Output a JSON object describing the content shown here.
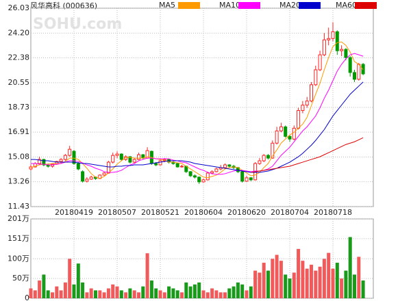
{
  "chart_data": {
    "type": "candlestick",
    "title": "风华高科 (000636)",
    "watermark": "SOHU.com",
    "up_color": "#ff2020",
    "down_color": "#009900",
    "categories": [
      null,
      null,
      null,
      null,
      null,
      null,
      null,
      null,
      null,
      null,
      "20180419",
      null,
      null,
      null,
      null,
      null,
      null,
      null,
      null,
      null,
      "20180507",
      null,
      null,
      null,
      null,
      null,
      null,
      null,
      null,
      null,
      "20180521",
      null,
      null,
      null,
      null,
      null,
      null,
      null,
      null,
      null,
      "20180604",
      null,
      null,
      null,
      null,
      null,
      null,
      null,
      null,
      null,
      "20180620",
      null,
      null,
      null,
      null,
      null,
      null,
      null,
      null,
      null,
      "20180704",
      null,
      null,
      null,
      null,
      null,
      null,
      null,
      null,
      null,
      "20180718",
      null,
      null,
      null,
      null,
      null,
      null,
      null
    ],
    "open": [
      14.2,
      14.35,
      14.6,
      14.9,
      14.5,
      14.4,
      14.55,
      14.75,
      14.9,
      15.2,
      15.5,
      14.6,
      14.0,
      13.3,
      13.45,
      13.6,
      13.5,
      13.75,
      13.9,
      14.7,
      15.2,
      15.3,
      14.9,
      15.1,
      14.7,
      14.9,
      15.25,
      15.0,
      15.5,
      14.6,
      14.5,
      14.8,
      14.9,
      14.7,
      14.6,
      14.35,
      14.4,
      14.0,
      13.7,
      13.6,
      13.25,
      13.4,
      13.9,
      14.0,
      14.2,
      14.3,
      14.5,
      14.4,
      14.3,
      14.0,
      13.3,
      13.55,
      13.4,
      14.6,
      14.8,
      15.2,
      15.0,
      16.1,
      17.0,
      17.3,
      16.6,
      16.4,
      17.2,
      18.5,
      18.9,
      19.2,
      20.4,
      21.5,
      22.6,
      23.7,
      23.8,
      24.3,
      22.9,
      23.0,
      22.4,
      21.3,
      20.8,
      21.9
    ],
    "high": [
      14.5,
      14.7,
      15.1,
      14.95,
      14.6,
      14.6,
      14.8,
      15.0,
      15.3,
      15.9,
      15.6,
      14.7,
      14.1,
      13.6,
      13.7,
      13.65,
      13.8,
      14.0,
      14.8,
      15.4,
      15.5,
      15.35,
      15.2,
      15.15,
      15.0,
      15.4,
      15.3,
      15.8,
      15.55,
      14.7,
      14.9,
      15.0,
      14.95,
      14.8,
      14.65,
      14.5,
      14.45,
      14.05,
      13.8,
      13.65,
      13.5,
      14.0,
      14.1,
      14.3,
      14.5,
      14.6,
      14.55,
      14.5,
      14.35,
      14.05,
      13.7,
      13.6,
      14.7,
      15.0,
      15.3,
      15.3,
      16.3,
      17.3,
      17.6,
      17.4,
      16.7,
      17.4,
      18.7,
      19.2,
      19.5,
      20.6,
      21.8,
      22.9,
      24.2,
      24.6,
      25.0,
      24.4,
      23.3,
      23.1,
      22.5,
      21.5,
      22.0,
      22.0
    ],
    "low": [
      14.1,
      14.3,
      14.5,
      14.4,
      14.3,
      14.3,
      14.5,
      14.6,
      14.8,
      15.1,
      14.5,
      14.1,
      13.2,
      13.2,
      13.4,
      13.4,
      13.45,
      13.7,
      13.85,
      14.6,
      15.0,
      14.8,
      14.8,
      14.6,
      14.6,
      14.85,
      14.9,
      14.95,
      14.5,
      14.4,
      14.45,
      14.7,
      14.6,
      14.5,
      14.3,
      14.3,
      13.9,
      13.6,
      13.5,
      13.1,
      13.2,
      13.35,
      13.8,
      13.95,
      14.1,
      14.2,
      14.3,
      14.2,
      13.9,
      13.2,
      13.25,
      13.3,
      13.35,
      14.5,
      14.7,
      14.9,
      14.95,
      16.0,
      16.9,
      16.5,
      16.2,
      16.3,
      17.1,
      18.3,
      18.7,
      19.1,
      20.3,
      21.4,
      22.5,
      23.3,
      23.6,
      22.6,
      22.5,
      22.2,
      21.0,
      20.6,
      20.7,
      21.1
    ],
    "close": [
      14.35,
      14.6,
      14.9,
      14.5,
      14.4,
      14.55,
      14.75,
      14.9,
      15.2,
      15.65,
      14.6,
      14.2,
      13.3,
      13.45,
      13.6,
      13.5,
      13.75,
      13.9,
      14.7,
      15.2,
      15.3,
      14.9,
      15.1,
      14.7,
      14.9,
      15.25,
      15.0,
      15.55,
      14.6,
      14.5,
      14.8,
      14.9,
      14.7,
      14.6,
      14.35,
      14.4,
      14.0,
      13.7,
      13.6,
      13.25,
      13.4,
      13.9,
      14.0,
      14.2,
      14.3,
      14.5,
      14.4,
      14.3,
      14.0,
      13.3,
      13.55,
      13.4,
      14.6,
      14.8,
      15.2,
      15.0,
      16.1,
      17.0,
      17.3,
      16.6,
      16.4,
      17.2,
      18.5,
      18.9,
      19.2,
      20.4,
      21.5,
      22.6,
      23.7,
      23.8,
      24.3,
      22.9,
      23.0,
      22.4,
      21.3,
      20.8,
      21.9,
      21.2
    ],
    "ylim": [
      11.43,
      26.03
    ],
    "yticks": [
      26.03,
      {
        "value": 24.2,
        "label": "24.20"
      },
      22.38,
      20.55,
      18.73,
      16.91,
      15.08,
      13.26,
      11.43
    ],
    "grid": true,
    "series": [
      {
        "name": "MA5",
        "color": "#ff9900",
        "values": [
          14.3,
          14.4,
          14.5,
          14.55,
          14.55,
          14.6,
          14.6,
          14.6,
          14.75,
          15.0,
          15.0,
          14.9,
          14.6,
          14.25,
          13.85,
          13.6,
          13.5,
          13.65,
          13.9,
          14.2,
          14.55,
          14.8,
          15.05,
          15.05,
          15.0,
          15.0,
          15.0,
          15.1,
          15.05,
          14.95,
          14.9,
          14.85,
          14.7,
          14.7,
          14.65,
          14.6,
          14.4,
          14.2,
          14.0,
          13.8,
          13.6,
          13.55,
          13.65,
          13.75,
          13.95,
          14.2,
          14.3,
          14.35,
          14.3,
          14.1,
          13.9,
          13.7,
          13.75,
          13.95,
          14.3,
          14.6,
          15.15,
          15.6,
          16.1,
          16.4,
          16.7,
          16.9,
          17.2,
          17.5,
          18.0,
          18.85,
          19.7,
          20.5,
          21.5,
          22.4,
          23.2,
          23.5,
          23.55,
          23.3,
          22.8,
          22.1,
          21.9,
          21.5
        ]
      },
      {
        "name": "MA10",
        "color": "#ff00ff",
        "values": [
          14.6,
          14.6,
          14.55,
          14.55,
          14.5,
          14.5,
          14.55,
          14.6,
          14.7,
          14.8,
          14.8,
          14.75,
          14.65,
          14.5,
          14.4,
          14.25,
          14.15,
          14.0,
          13.95,
          13.95,
          14.0,
          14.1,
          14.3,
          14.5,
          14.6,
          14.8,
          14.9,
          15.0,
          15.0,
          14.95,
          14.95,
          14.95,
          14.95,
          14.85,
          14.8,
          14.7,
          14.65,
          14.5,
          14.35,
          14.2,
          14.1,
          13.95,
          13.85,
          13.8,
          13.8,
          13.85,
          13.95,
          14.05,
          14.1,
          14.1,
          14.05,
          14.0,
          14.05,
          14.05,
          14.1,
          14.2,
          14.4,
          14.8,
          15.2,
          15.5,
          15.8,
          16.2,
          16.6,
          17.0,
          17.3,
          17.7,
          18.1,
          18.7,
          19.4,
          20.0,
          20.7,
          21.4,
          21.9,
          22.3,
          22.6,
          22.7,
          22.6,
          22.5
        ]
      },
      {
        "name": "MA20",
        "color": "#0000cc",
        "values": [
          14.9,
          14.9,
          14.85,
          14.8,
          14.8,
          14.75,
          14.7,
          14.7,
          14.7,
          14.7,
          14.7,
          14.65,
          14.6,
          14.6,
          14.55,
          14.5,
          14.45,
          14.4,
          14.35,
          14.35,
          14.4,
          14.4,
          14.45,
          14.45,
          14.5,
          14.5,
          14.5,
          14.55,
          14.6,
          14.65,
          14.7,
          14.75,
          14.8,
          14.8,
          14.8,
          14.8,
          14.75,
          14.7,
          14.6,
          14.55,
          14.5,
          14.45,
          14.4,
          14.35,
          14.3,
          14.25,
          14.2,
          14.15,
          14.1,
          14.05,
          14.0,
          13.95,
          13.95,
          13.95,
          14.0,
          14.05,
          14.15,
          14.25,
          14.4,
          14.55,
          14.7,
          14.9,
          15.1,
          15.35,
          15.65,
          15.95,
          16.3,
          16.7,
          17.1,
          17.6,
          18.1,
          18.5,
          18.9,
          19.3,
          19.7,
          20.0,
          20.3,
          20.6
        ]
      },
      {
        "name": "MA60",
        "color": "#dd0000",
        "values": [
          null,
          null,
          null,
          null,
          null,
          null,
          null,
          null,
          null,
          null,
          null,
          null,
          null,
          null,
          null,
          null,
          null,
          null,
          null,
          null,
          null,
          null,
          null,
          null,
          null,
          null,
          null,
          null,
          null,
          null,
          null,
          null,
          null,
          null,
          null,
          null,
          null,
          null,
          null,
          null,
          null,
          null,
          null,
          null,
          null,
          null,
          null,
          null,
          null,
          null,
          null,
          13.95,
          14.0,
          14.05,
          14.1,
          14.15,
          14.2,
          14.25,
          14.3,
          14.35,
          14.4,
          14.5,
          14.6,
          14.7,
          14.8,
          14.9,
          15.0,
          15.1,
          15.25,
          15.4,
          15.55,
          15.7,
          15.85,
          16.0,
          16.1,
          16.2,
          16.35,
          16.5
        ]
      }
    ],
    "volume": {
      "values": [
        25,
        20,
        45,
        60,
        20,
        15,
        30,
        20,
        40,
        100,
        35,
        88,
        40,
        15,
        25,
        20,
        20,
        15,
        25,
        35,
        30,
        20,
        15,
        25,
        20,
        15,
        30,
        114,
        45,
        25,
        20,
        15,
        30,
        25,
        20,
        15,
        40,
        30,
        35,
        40,
        20,
        15,
        25,
        20,
        15,
        15,
        25,
        30,
        40,
        35,
        20,
        30,
        70,
        65,
        90,
        70,
        100,
        110,
        95,
        60,
        50,
        65,
        125,
        95,
        75,
        85,
        70,
        80,
        100,
        115,
        75,
        90,
        50,
        70,
        155,
        60,
        105,
        45
      ],
      "ylim": [
        0,
        201
      ],
      "yticks": [
        0,
        {
          "value": 50,
          "label": "50万"
        },
        {
          "value": 100,
          "label": "100万"
        },
        {
          "value": 151,
          "label": "151万"
        },
        {
          "value": 201,
          "label": "201万"
        }
      ]
    }
  }
}
